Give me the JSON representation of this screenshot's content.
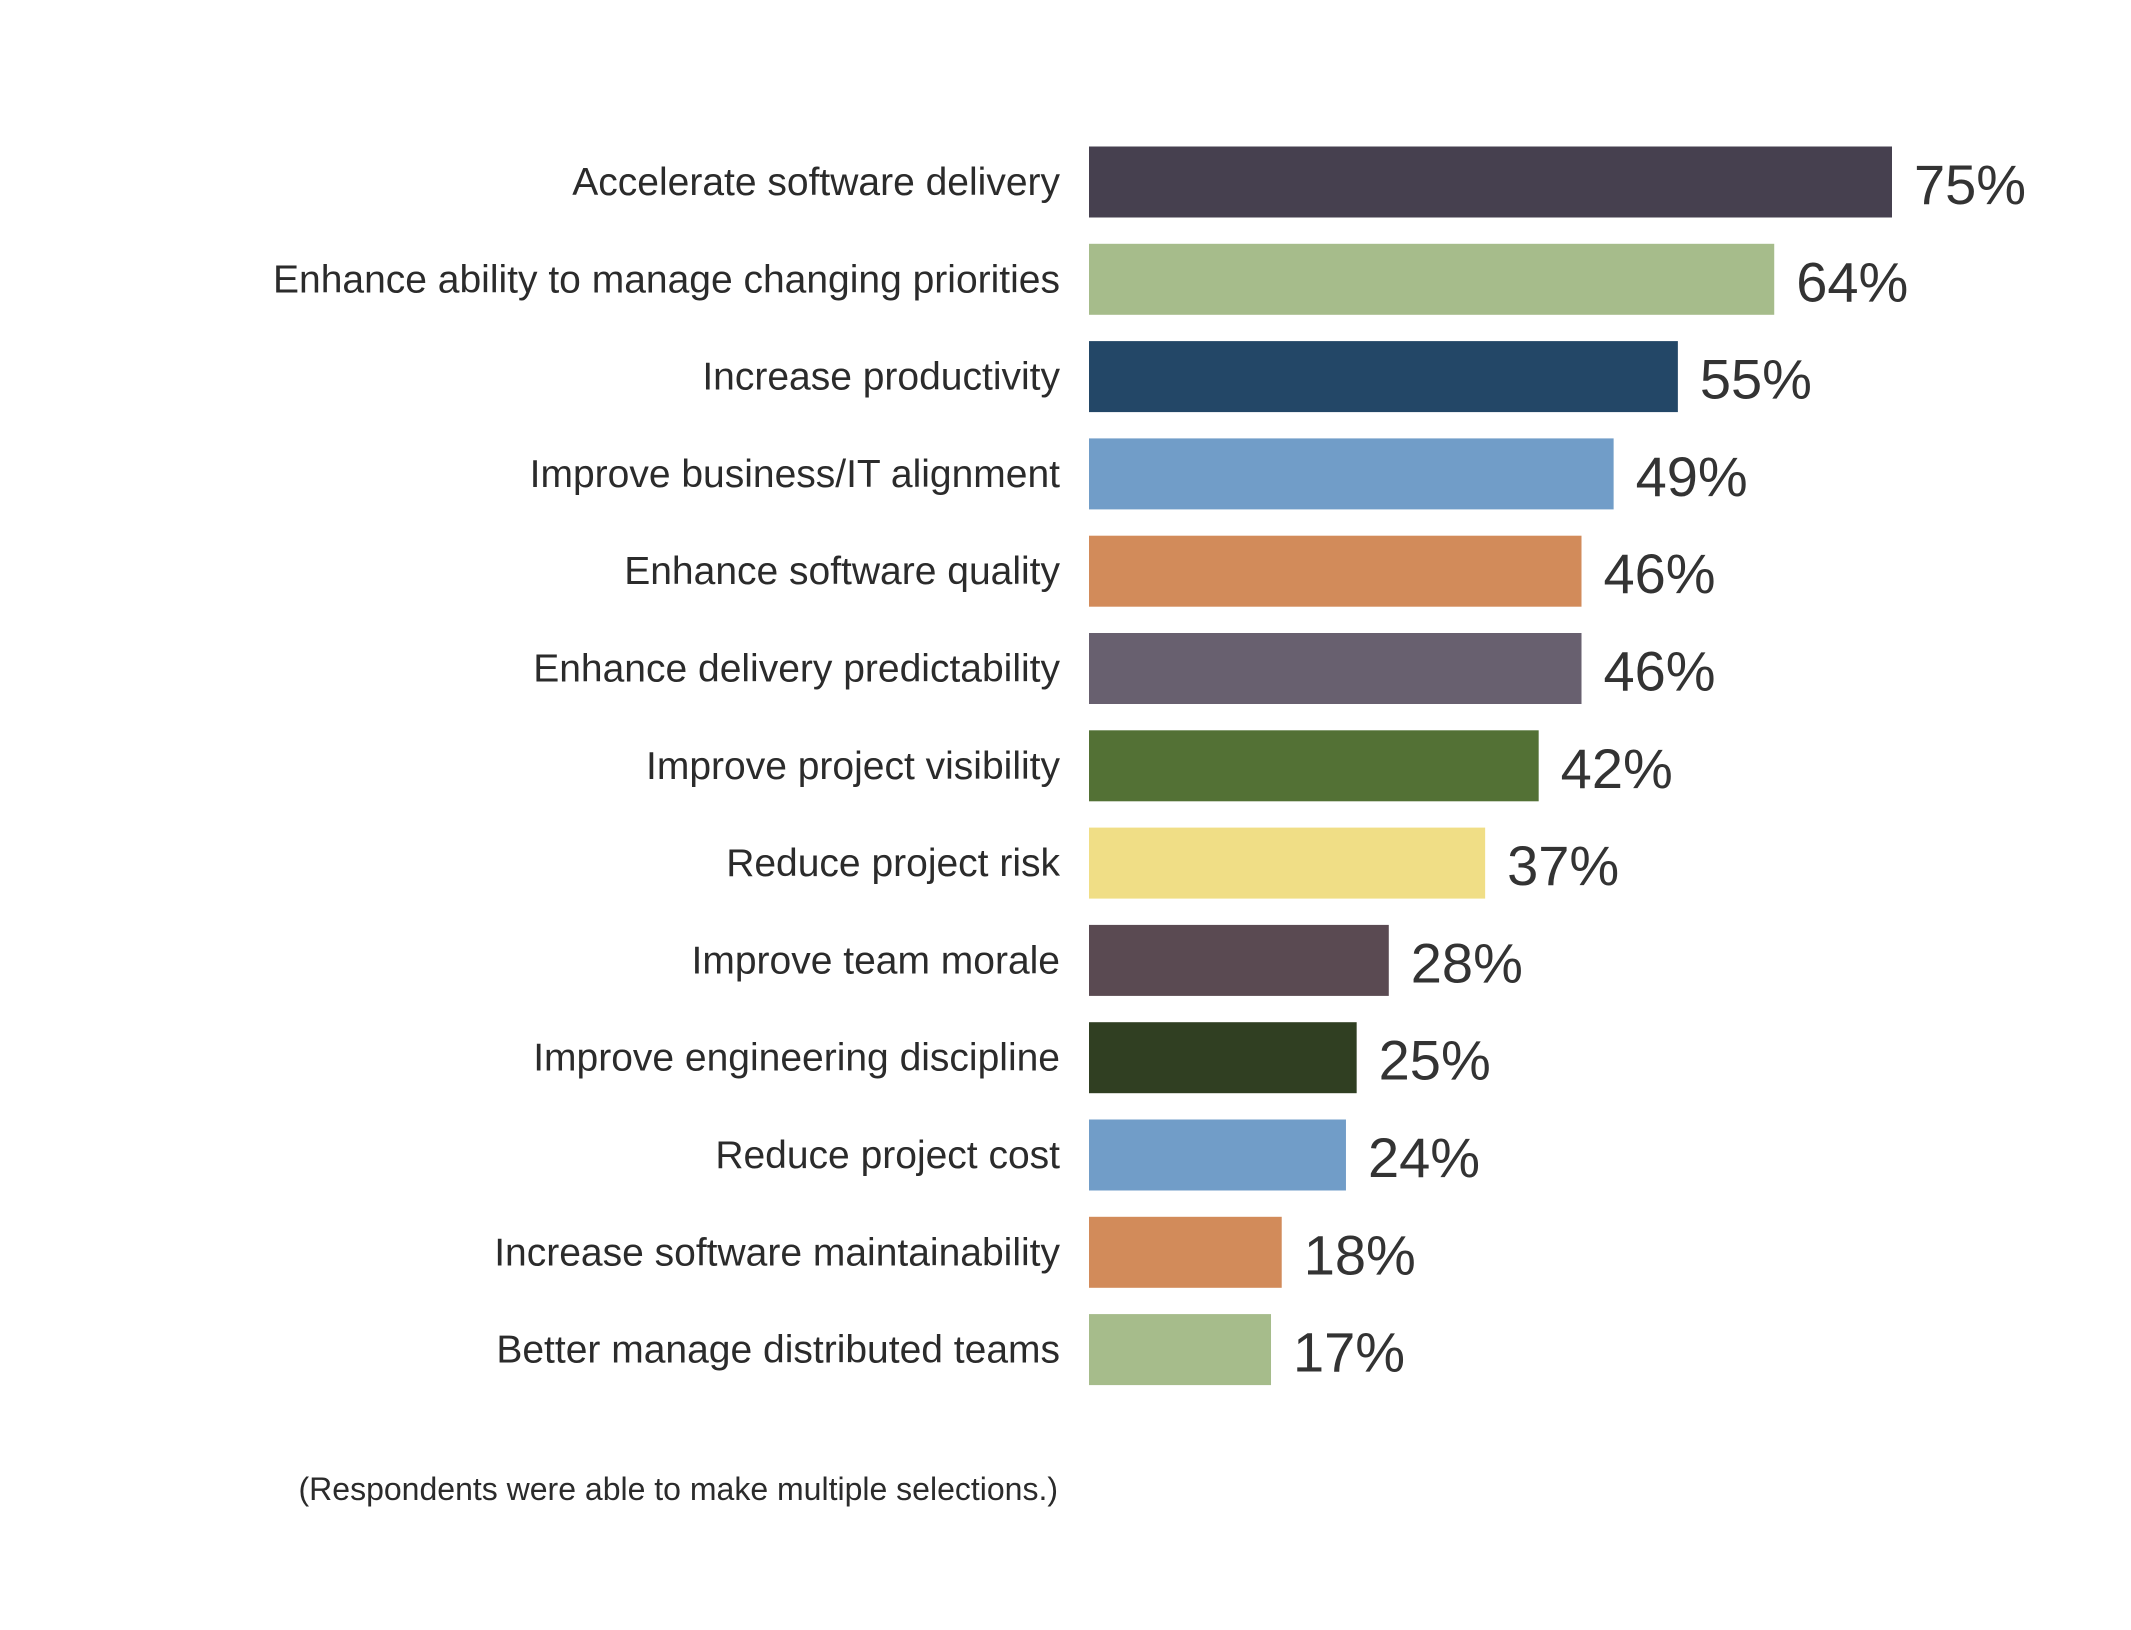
{
  "chart_data": {
    "type": "bar",
    "orientation": "horizontal",
    "categories": [
      "Accelerate software delivery",
      "Enhance ability to manage changing priorities",
      "Increase productivity",
      "Improve business/IT alignment",
      "Enhance software quality",
      "Enhance delivery predictability",
      "Improve project visibility",
      "Reduce project risk",
      "Improve team morale",
      "Improve engineering discipline",
      "Reduce project cost",
      "Increase software maintainability",
      "Better manage distributed teams"
    ],
    "values": [
      75,
      64,
      55,
      49,
      46,
      46,
      42,
      37,
      28,
      25,
      24,
      18,
      17
    ],
    "value_labels": [
      "75%",
      "64%",
      "55%",
      "49%",
      "46%",
      "46%",
      "42%",
      "37%",
      "28%",
      "25%",
      "24%",
      "18%",
      "17%"
    ],
    "colors": [
      "#46404f",
      "#a6bc8b",
      "#234767",
      "#719dc8",
      "#d28b5a",
      "#68606f",
      "#537135",
      "#f0de86",
      "#5a4a52",
      "#303f22",
      "#719dc8",
      "#d28b5a",
      "#a6bc8b"
    ],
    "xlim": [
      0,
      100
    ],
    "grid": false,
    "axes_visible": false,
    "footnote": "(Respondents were able to make multiple selections.)"
  }
}
